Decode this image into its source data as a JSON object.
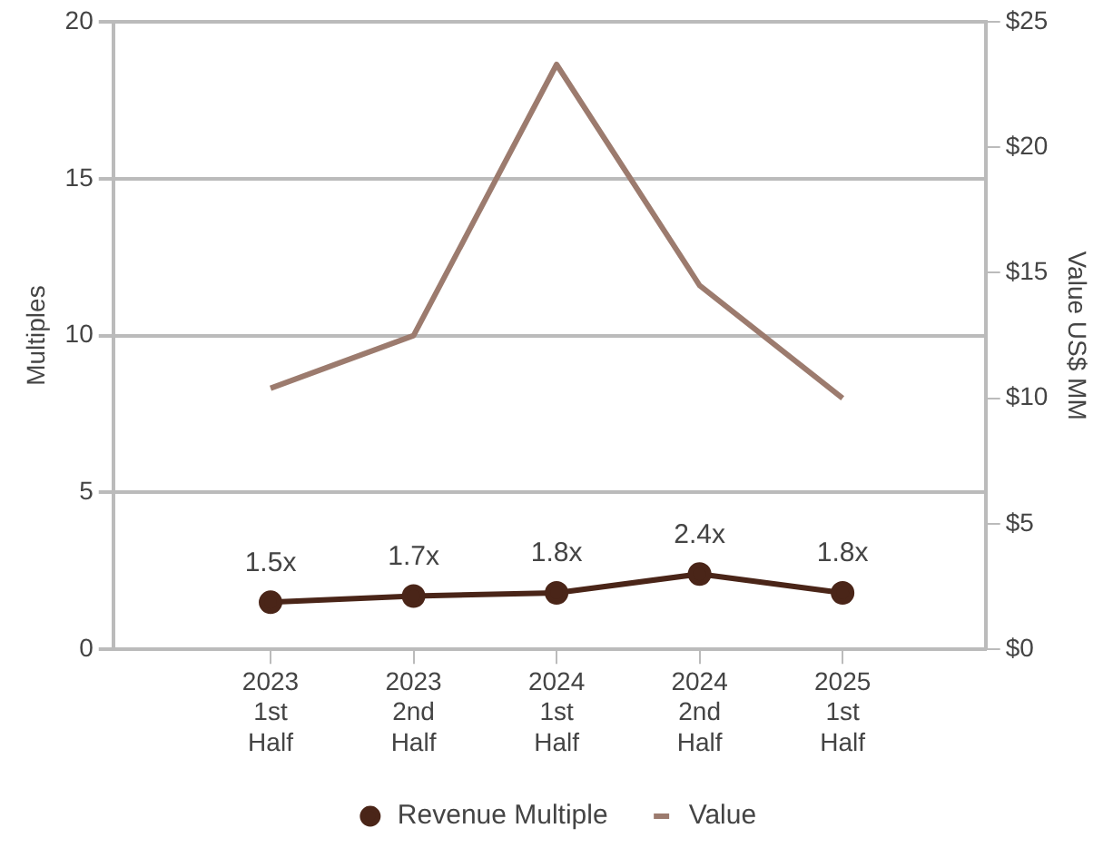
{
  "chart_data": {
    "type": "line",
    "categories": [
      "2023 1st Half",
      "2023 2nd Half",
      "2024 1st Half",
      "2024 2nd Half",
      "2025 1st Half"
    ],
    "ylabel": "Multiples",
    "y2label": "Value US$ MM",
    "ylim": [
      0,
      20
    ],
    "yticks": [
      0,
      5,
      10,
      15,
      20
    ],
    "y2lim": [
      0,
      25
    ],
    "y2ticks": [
      {
        "value": 0,
        "label": "$0"
      },
      {
        "value": 5,
        "label": "$5"
      },
      {
        "value": 10,
        "label": "$10"
      },
      {
        "value": 15,
        "label": "$15"
      },
      {
        "value": 20,
        "label": "$20"
      },
      {
        "value": 25,
        "label": "$25"
      }
    ],
    "grid": "y",
    "legend": "bottom",
    "line_style": "solid",
    "series": [
      {
        "name": "Revenue Multiple",
        "color": "#4a2518",
        "marker": "circle",
        "values": [
          1.5,
          1.7,
          1.8,
          2.4,
          1.8
        ],
        "value_labels": [
          "1.5x",
          "1.7x",
          "1.8x",
          "2.4x",
          "1.8x"
        ]
      },
      {
        "name": "Value",
        "color": "#9c7b6e",
        "marker": "none",
        "axis": "y2",
        "values": [
          10.4,
          12.5,
          23.3,
          14.5,
          10.0
        ]
      }
    ]
  }
}
